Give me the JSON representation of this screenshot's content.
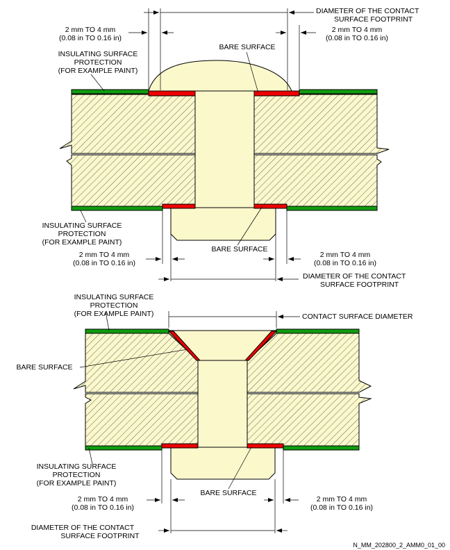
{
  "colors": {
    "paint": "#109c10",
    "bare": "#ee0000",
    "fastener": "#fbf8cc",
    "structure": "#fbf8cc",
    "hatch": "#555555"
  },
  "top_fig": {
    "dia_footprint_l1": "DIAMETER OF THE CONTACT",
    "dia_footprint_l2": "SURFACE FOOTPRINT",
    "dim_l1": "2 mm TO 4 mm",
    "dim_l2": "(0.08 in TO 0.16 in)",
    "dim_r1": "2 mm TO 4 mm",
    "dim_r2": "(0.08 in TO 0.16 in)",
    "insul_l1": "INSULATING SURFACE",
    "insul_l2": "PROTECTION",
    "insul_l3": "(FOR EXAMPLE PAINT)",
    "bare": "BARE SURFACE"
  },
  "mid_fig": {
    "insul_l1": "INSULATING SURFACE",
    "insul_l2": "PROTECTION",
    "insul_l3": "(FOR EXAMPLE PAINT)",
    "bare": "BARE SURFACE",
    "dim_l1": "2 mm TO 4 mm",
    "dim_l2": "(0.08 in TO 0.16 in)",
    "dim_r1": "2 mm TO 4 mm",
    "dim_r2": "(0.08 in TO 0.16 in)",
    "dia_footprint_l1": "DIAMETER OF THE CONTACT",
    "dia_footprint_l2": "SURFACE FOOTPRINT"
  },
  "bot_fig": {
    "insul_top_l1": "INSULATING SURFACE",
    "insul_top_l2": "PROTECTION",
    "insul_top_l3": "(FOR EXAMPLE PAINT)",
    "contact_dia": "CONTACT SURFACE DIAMETER",
    "bare_top": "BARE SURFACE",
    "insul_bot_l1": "INSULATING SURFACE",
    "insul_bot_l2": "PROTECTION",
    "insul_bot_l3": "(FOR EXAMPLE PAINT)",
    "bare_bot": "BARE SURFACE",
    "dim_l1": "2 mm TO 4 mm",
    "dim_l2": "(0.08 in TO 0.16 in)",
    "dim_r1": "2 mm TO 4 mm",
    "dim_r2": "(0.08 in TO 0.16 in)",
    "dia_footprint_l1": "DIAMETER OF THE CONTACT",
    "dia_footprint_l2": "SURFACE FOOTPRINT"
  },
  "reference": "N_MM_202800_2_AMM0_01_00"
}
